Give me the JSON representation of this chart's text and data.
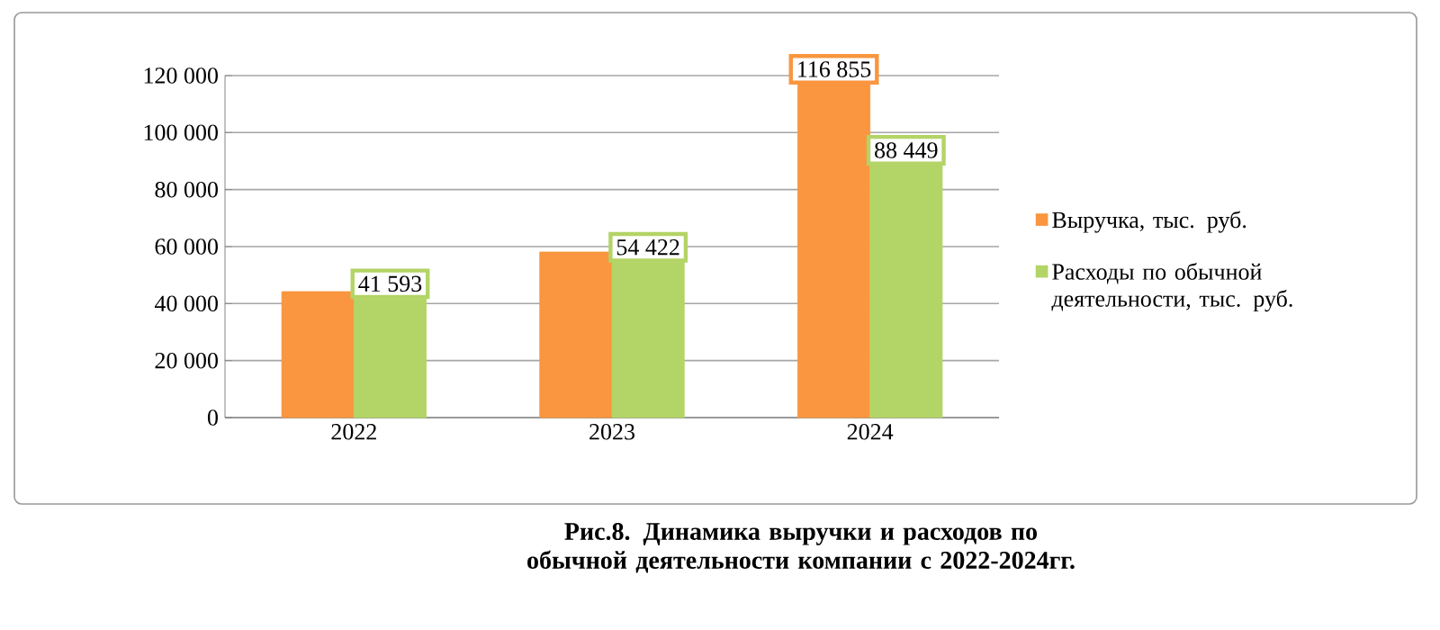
{
  "chart_data": {
    "type": "bar",
    "title": "Рис.8. Динамика выручки и расходов по обычной деятельности компании с 2022-2024гг.",
    "categories": [
      "2022",
      "2023",
      "2024"
    ],
    "series": [
      {
        "name": "Выручка, тыс. руб.",
        "color": "#f9963f",
        "values": [
          44200,
          58100,
          116855
        ],
        "value_labels": [
          null,
          null,
          "116 855"
        ]
      },
      {
        "name": "Расходы по обычной деятельности, тыс. руб.",
        "color": "#b3d466",
        "values": [
          41593,
          54422,
          88449
        ],
        "value_labels": [
          "41 593",
          "54 422",
          "88 449"
        ]
      }
    ],
    "ylim": [
      0,
      120000
    ],
    "yticks": [
      {
        "value": 0,
        "label": "0"
      },
      {
        "value": 20000,
        "label": "20 000"
      },
      {
        "value": 40000,
        "label": "40 000"
      },
      {
        "value": 60000,
        "label": "60 000"
      },
      {
        "value": 80000,
        "label": "80 000"
      },
      {
        "value": 100000,
        "label": "100 000"
      },
      {
        "value": 120000,
        "label": "120 000"
      }
    ],
    "grid": "y",
    "legend": "right"
  }
}
